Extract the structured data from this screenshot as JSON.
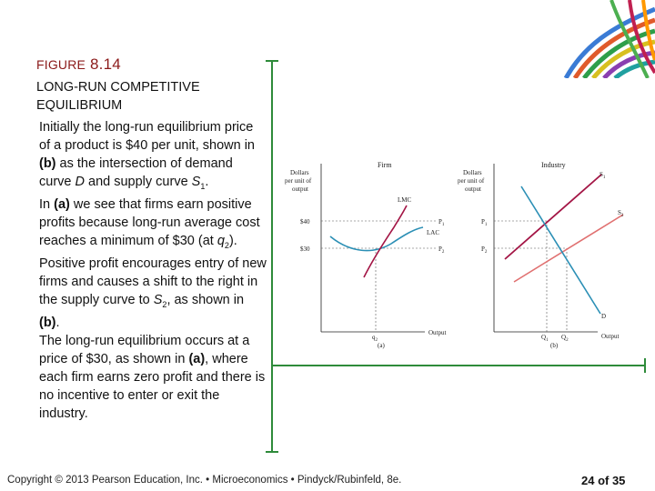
{
  "slide": {
    "figure_word": "Figure",
    "figure_number": "8.14",
    "subtitle": "LONG-RUN COMPETITIVE EQUILIBRIUM"
  },
  "body": {
    "p1_a": "Initially the long-run equilibrium price of a product is $40 per unit, shown in ",
    "p1_b": "(b)",
    "p1_c": " as the intersection of demand curve ",
    "p1_d": "D",
    "p1_e": " and supply curve ",
    "p1_f": "S",
    "p1_f_sub": "1",
    "p1_g": ".",
    "p2_a": "In ",
    "p2_b": "(a)",
    "p2_c": " we see that firms earn positive profits because long-run average cost reaches a minimum of $30 (at ",
    "p2_d": "q",
    "p2_d_sub": "2",
    "p2_e": ").",
    "p3_a": "Positive profit encourages entry of new firms and causes a shift to the right in the supply curve to ",
    "p3_b": "S",
    "p3_b_sub": "2",
    "p3_c": ", as shown in ",
    "p3_d": "(b)",
    "p3_e": ".",
    "p4_a": "The long-run equilibrium occurs at a price of $30, as shown in ",
    "p4_b": "(a)",
    "p4_c": ", where each firm earns zero profit and there is no incentive to enter or exit the industry."
  },
  "graph_firm": {
    "ylabel_1": "Dollars",
    "ylabel_2": "per unit of",
    "ylabel_3": "output",
    "title": "Firm",
    "tick_40": "$40",
    "tick_30": "$30",
    "lmc": "LMC",
    "lac": "LAC",
    "p1": "P",
    "p1_sub": "1",
    "p2": "P",
    "p2_sub": "2",
    "q2": "q",
    "q2_sub": "2",
    "xlabel": "Output",
    "panel": "(a)"
  },
  "graph_industry": {
    "ylabel_1": "Dollars",
    "ylabel_2": "per unit of",
    "ylabel_3": "output",
    "title": "Industry",
    "p1": "P",
    "p1_sub": "1",
    "p2": "P",
    "p2_sub": "2",
    "s1": "S",
    "s1_sub": "1",
    "s2": "S",
    "s2_sub": "2",
    "d": "D",
    "q1": "Q",
    "q1_sub": "1",
    "q2": "Q",
    "q2_sub": "2",
    "xlabel": "Output",
    "panel": "(b)"
  },
  "colors": {
    "accent_line": "#2e8b3a",
    "title_color": "#8b1a1a",
    "lmc": "#a31545",
    "lac": "#2b8fb5",
    "s1": "#a31545",
    "s2": "#e07070",
    "demand": "#2b8fb5"
  },
  "footer": {
    "copyright": "Copyright © 2013 Pearson Education, Inc. • Microeconomics • Pindyck/Rubinfeld, 8e.",
    "page": "24 of 35"
  }
}
